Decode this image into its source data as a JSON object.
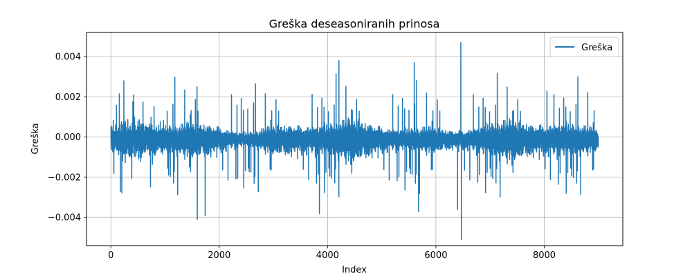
{
  "chart_data": {
    "type": "line",
    "title": "Greška deseasoniranih prinosa",
    "xlabel": "Index",
    "ylabel": "Greška",
    "xlim": [
      -450,
      9450
    ],
    "ylim": [
      -0.0054,
      0.0052
    ],
    "xticks": [
      0,
      2000,
      4000,
      6000,
      8000
    ],
    "yticks": [
      -0.004,
      -0.002,
      0.0,
      0.002,
      0.004
    ],
    "xtick_labels": [
      "0",
      "2000",
      "4000",
      "6000",
      "8000"
    ],
    "ytick_labels": [
      "−0.004",
      "−0.002",
      "0.000",
      "0.002",
      "0.004"
    ],
    "grid": true,
    "legend_position": "top-right",
    "series": [
      {
        "name": "Greška",
        "color": "#1f77b4",
        "n_points": 9000,
        "x_start": 0,
        "x_end": 8999,
        "y_min": -0.0051,
        "y_max": 0.0047,
        "notable_points": [
          {
            "x": 240,
            "y": 0.0028
          },
          {
            "x": 1590,
            "y": 0.0025
          },
          {
            "x": 1595,
            "y": -0.0041
          },
          {
            "x": 1740,
            "y": -0.0039
          },
          {
            "x": 4210,
            "y": 0.0038
          },
          {
            "x": 3850,
            "y": -0.0038
          },
          {
            "x": 5600,
            "y": 0.0037
          },
          {
            "x": 5680,
            "y": -0.0037
          },
          {
            "x": 6460,
            "y": 0.0047
          },
          {
            "x": 6470,
            "y": -0.0051
          },
          {
            "x": 6400,
            "y": -0.0036
          },
          {
            "x": 8050,
            "y": 0.0023
          }
        ]
      }
    ]
  }
}
